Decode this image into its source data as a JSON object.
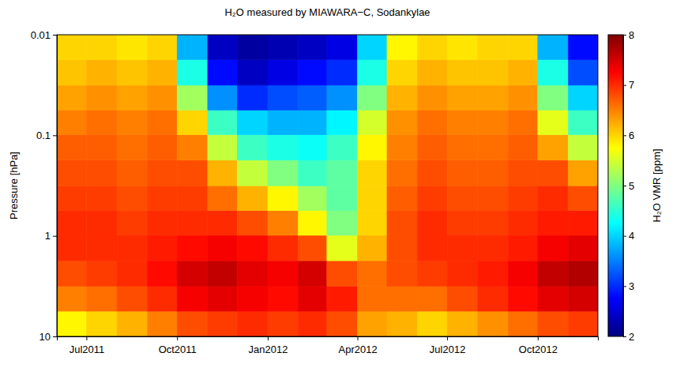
{
  "chart_data": {
    "type": "heatmap",
    "title": "H₂O measured by MIAWARA−C, Sodankylae",
    "y_label": "Pressure [hPa]",
    "log": "y",
    "xlim": [
      "2011-06",
      "2012-12"
    ],
    "xticks": [
      {
        "value": "2011-07",
        "label": "Jul2011"
      },
      {
        "value": "2011-10",
        "label": "Oct2011"
      },
      {
        "value": "2012-01",
        "label": "Jan2012"
      },
      {
        "value": "2012-04",
        "label": "Apr2012"
      },
      {
        "value": "2012-07",
        "label": "Jul2012"
      },
      {
        "value": "2012-10",
        "label": "Oct2012"
      }
    ],
    "ylim": [
      10,
      0.01
    ],
    "yticks": [
      10,
      1,
      0.1,
      0.01
    ],
    "x": [
      "2011-06",
      "2011-07",
      "2011-08",
      "2011-09",
      "2011-10",
      "2011-11",
      "2011-12",
      "2012-01",
      "2012-02",
      "2012-03",
      "2012-04",
      "2012-05",
      "2012-06",
      "2012-07",
      "2012-08",
      "2012-09",
      "2012-10",
      "2012-11"
    ],
    "y": [
      7.5,
      4.2,
      2.4,
      1.3,
      0.75,
      0.42,
      0.24,
      0.13,
      0.075,
      0.042,
      0.024,
      0.013
    ],
    "values": [
      [
        5.8,
        6.0,
        6.2,
        6.5,
        6.8,
        6.9,
        7.0,
        6.9,
        7.0,
        6.8,
        6.3,
        6.2,
        6.0,
        6.2,
        6.4,
        6.6,
        6.8,
        6.9
      ],
      [
        6.5,
        6.6,
        6.8,
        7.0,
        7.3,
        7.4,
        7.3,
        7.2,
        7.4,
        7.1,
        6.6,
        6.6,
        6.6,
        6.8,
        7.0,
        7.2,
        7.4,
        7.5
      ],
      [
        6.8,
        6.9,
        7.0,
        7.2,
        7.5,
        7.6,
        7.4,
        7.3,
        7.5,
        6.8,
        6.6,
        6.8,
        6.9,
        7.0,
        7.1,
        7.3,
        7.6,
        7.7
      ],
      [
        7.0,
        7.0,
        7.0,
        7.1,
        7.2,
        7.3,
        7.2,
        7.0,
        6.8,
        5.6,
        6.2,
        6.8,
        7.0,
        7.0,
        7.0,
        7.1,
        7.3,
        7.4
      ],
      [
        7.0,
        7.0,
        6.9,
        7.0,
        7.0,
        7.0,
        6.8,
        6.5,
        5.8,
        5.0,
        6.0,
        6.8,
        7.0,
        6.9,
        6.9,
        7.0,
        7.1,
        7.1
      ],
      [
        6.9,
        6.9,
        6.8,
        6.9,
        6.9,
        6.6,
        6.2,
        5.8,
        5.2,
        4.8,
        6.0,
        6.7,
        6.9,
        6.8,
        6.8,
        6.9,
        7.0,
        6.8
      ],
      [
        6.8,
        6.8,
        6.7,
        6.8,
        6.8,
        6.2,
        5.4,
        5.0,
        4.6,
        4.8,
        6.0,
        6.6,
        6.8,
        6.7,
        6.7,
        6.8,
        6.8,
        6.3
      ],
      [
        6.7,
        6.7,
        6.6,
        6.7,
        6.5,
        5.4,
        4.6,
        4.4,
        4.3,
        4.6,
        5.8,
        6.5,
        6.7,
        6.6,
        6.6,
        6.7,
        6.3,
        5.4
      ],
      [
        6.5,
        6.6,
        6.5,
        6.6,
        6.0,
        4.6,
        4.0,
        3.8,
        3.8,
        4.2,
        5.5,
        6.4,
        6.6,
        6.5,
        6.5,
        6.6,
        5.6,
        4.6
      ],
      [
        6.3,
        6.4,
        6.3,
        6.4,
        5.2,
        3.6,
        3.0,
        3.2,
        3.3,
        3.6,
        5.0,
        6.2,
        6.4,
        6.3,
        6.3,
        6.4,
        5.0,
        4.0
      ],
      [
        6.1,
        6.2,
        6.1,
        6.2,
        4.4,
        2.8,
        2.4,
        2.6,
        2.8,
        3.0,
        4.4,
        6.0,
        6.2,
        6.1,
        6.1,
        6.2,
        4.4,
        3.2
      ],
      [
        6.0,
        6.0,
        5.9,
        6.0,
        3.8,
        2.4,
        2.2,
        2.3,
        2.4,
        2.6,
        4.0,
        5.8,
        6.0,
        5.9,
        6.0,
        6.0,
        3.8,
        2.8
      ]
    ],
    "colorbar": {
      "label": "H₂O VMR [ppm]",
      "lim": [
        2,
        8
      ],
      "ticks": [
        2,
        3,
        4,
        5,
        6,
        7,
        8
      ]
    }
  }
}
